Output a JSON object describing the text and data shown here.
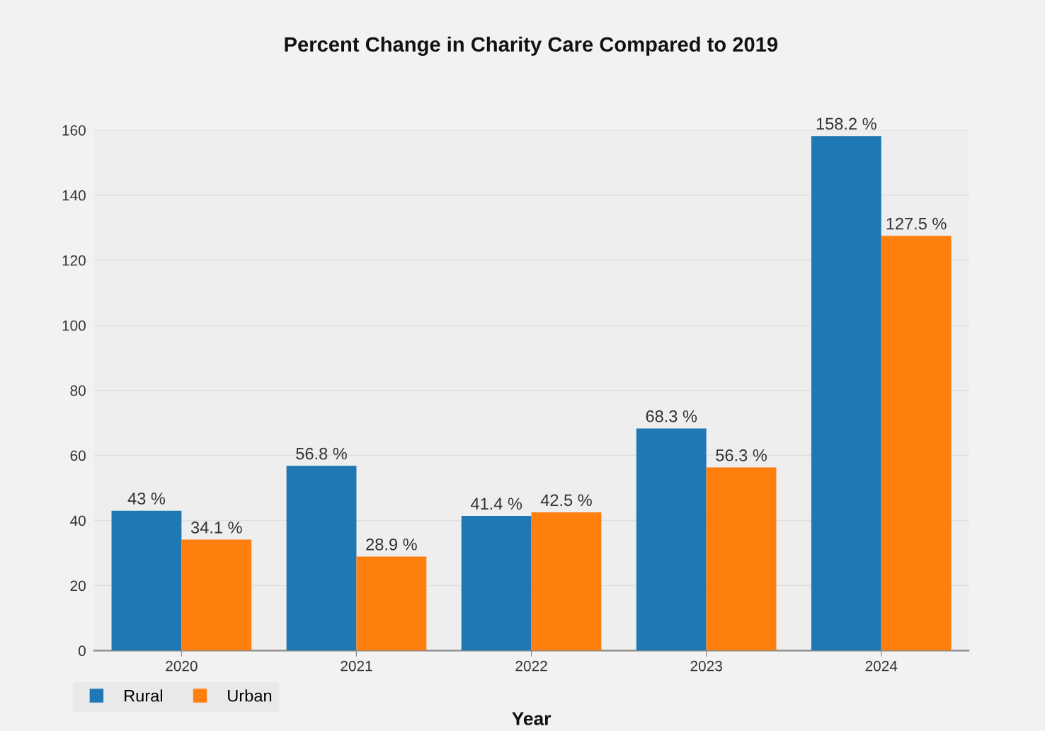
{
  "chart_data": {
    "type": "bar",
    "title": "Percent Change in Charity Care Compared to 2019",
    "xlabel": "Year",
    "categories": [
      "2020",
      "2021",
      "2022",
      "2023",
      "2024"
    ],
    "series": [
      {
        "name": "Rural",
        "color": "#1f77b4",
        "values": [
          43,
          56.8,
          41.4,
          68.3,
          158.2
        ],
        "value_labels": [
          "43 %",
          "56.8 %",
          "41.4 %",
          "68.3 %",
          "158.2 %"
        ]
      },
      {
        "name": "Urban",
        "color": "#ff7f0e",
        "values": [
          34.1,
          28.9,
          42.5,
          56.3,
          127.5
        ],
        "value_labels": [
          "34.1 %",
          "28.9 %",
          "42.5 %",
          "56.3 %",
          "127.5 %"
        ]
      }
    ],
    "ylim": [
      0,
      160
    ],
    "yticks": [
      0,
      20,
      40,
      60,
      80,
      100,
      120,
      140,
      160
    ],
    "grid": "y",
    "legend": "bottom left"
  }
}
